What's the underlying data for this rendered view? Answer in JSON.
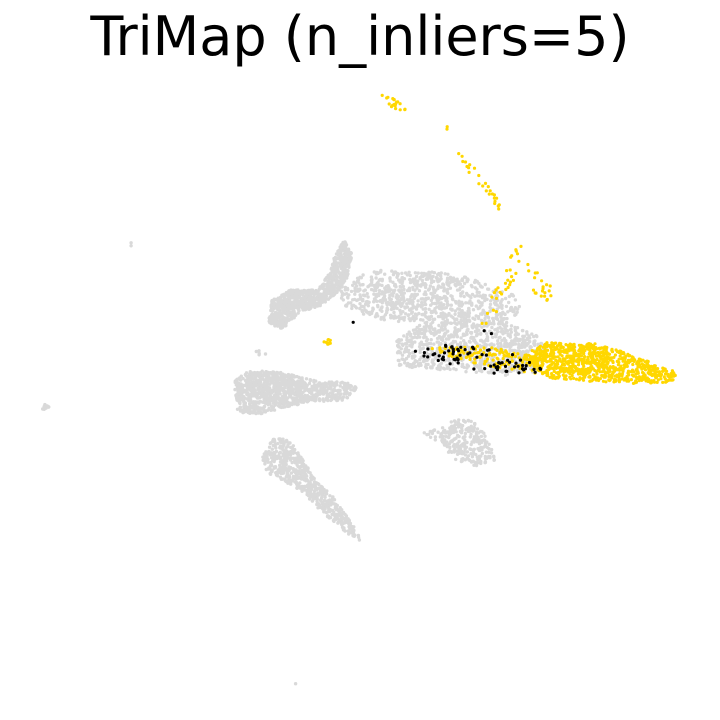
{
  "title": "TriMap (n_inliers=5)",
  "chart_data": {
    "type": "scatter",
    "title": "TriMap (n_inliers=5)",
    "xlabel": "",
    "ylabel": "",
    "axes_visible": false,
    "grid": false,
    "legend": "none",
    "colors": {
      "background_points": "#d9d9d9",
      "highlight_yellow": "#ffd700",
      "highlight_black": "#000000"
    },
    "series": [
      {
        "color_key": "background_points",
        "clusters": [
          {
            "polygon": [
              [
                42,
                406
              ],
              [
                45,
                403
              ],
              [
                49,
                407
              ],
              [
                46,
                411
              ],
              [
                42,
                410
              ]
            ],
            "n": 14
          },
          {
            "polygon": [
              [
                128,
                242
              ],
              [
                136,
                242
              ],
              [
                136,
                248
              ],
              [
                128,
                248
              ]
            ],
            "n": 2
          },
          {
            "polygon": [
              [
                272,
                300
              ],
              [
                290,
                290
              ],
              [
                318,
                290
              ],
              [
                330,
                272
              ],
              [
                334,
                258
              ],
              [
                344,
                240
              ],
              [
                352,
                254
              ],
              [
                348,
                276
              ],
              [
                338,
                292
              ],
              [
                320,
                306
              ],
              [
                300,
                312
              ],
              [
                282,
                330
              ],
              [
                268,
                322
              ]
            ],
            "n": 950
          },
          {
            "polygon": [
              [
                338,
                288
              ],
              [
                356,
                278
              ],
              [
                372,
                270
              ],
              [
                410,
                272
              ],
              [
                440,
                272
              ],
              [
                470,
                278
              ],
              [
                495,
                288
              ],
              [
                518,
                296
              ],
              [
                520,
                312
              ],
              [
                505,
                322
              ],
              [
                470,
                318
              ],
              [
                430,
                320
              ],
              [
                392,
                322
              ],
              [
                362,
                314
              ],
              [
                344,
                306
              ]
            ],
            "n": 800
          },
          {
            "polygon": [
              [
                395,
                340
              ],
              [
                425,
                322
              ],
              [
                465,
                318
              ],
              [
                505,
                322
              ],
              [
                535,
                334
              ],
              [
                548,
                352
              ],
              [
                535,
                372
              ],
              [
                505,
                376
              ],
              [
                465,
                372
              ],
              [
                425,
                369
              ],
              [
                398,
                366
              ]
            ],
            "n": 850
          },
          {
            "polygon": [
              [
                234,
                382
              ],
              [
                246,
                372
              ],
              [
                272,
                370
              ],
              [
                300,
                377
              ],
              [
                320,
                382
              ],
              [
                345,
                382
              ],
              [
                358,
                388
              ],
              [
                345,
                400
              ],
              [
                315,
                402
              ],
              [
                290,
                406
              ],
              [
                262,
                414
              ],
              [
                238,
                414
              ]
            ],
            "n": 1000
          },
          {
            "polygon": [
              [
                262,
                458
              ],
              [
                273,
                438
              ],
              [
                290,
                440
              ],
              [
                303,
                460
              ],
              [
                316,
                480
              ],
              [
                336,
                500
              ],
              [
                356,
                530
              ],
              [
                362,
                542
              ],
              [
                345,
                532
              ],
              [
                320,
                510
              ],
              [
                300,
                490
              ],
              [
                282,
                480
              ],
              [
                266,
                472
              ]
            ],
            "n": 600
          },
          {
            "polygon": [
              [
                420,
                434
              ],
              [
                440,
                428
              ],
              [
                458,
                418
              ],
              [
                475,
                422
              ],
              [
                490,
                440
              ],
              [
                495,
                460
              ],
              [
                475,
                466
              ],
              [
                455,
                460
              ],
              [
                440,
                442
              ]
            ],
            "n": 260
          },
          {
            "polygon": [
              [
                252,
                350
              ],
              [
                268,
                350
              ],
              [
                268,
                356
              ],
              [
                252,
                356
              ]
            ],
            "n": 5
          },
          {
            "polygon": [
              [
                290,
                680
              ],
              [
                298,
                680
              ],
              [
                298,
                684
              ],
              [
                290,
                684
              ]
            ],
            "n": 1
          }
        ]
      },
      {
        "color_key": "highlight_yellow",
        "clusters": [
          {
            "polygon": [
              [
                380,
                93
              ],
              [
                398,
                100
              ],
              [
                408,
                112
              ],
              [
                390,
                110
              ]
            ],
            "n": 20
          },
          {
            "polygon": [
              [
                444,
                126
              ],
              [
                448,
                126
              ],
              [
                448,
                130
              ],
              [
                444,
                130
              ]
            ],
            "n": 2
          },
          {
            "polygon": [
              [
                456,
                152
              ],
              [
                470,
                160
              ],
              [
                488,
                182
              ],
              [
                503,
                208
              ],
              [
                498,
                210
              ],
              [
                482,
                188
              ],
              [
                465,
                168
              ]
            ],
            "n": 26
          },
          {
            "polygon": [
              [
                502,
                276
              ],
              [
                518,
                240
              ],
              [
                524,
                248
              ],
              [
                512,
                288
              ],
              [
                492,
                320
              ],
              [
                482,
                330
              ],
              [
                480,
                322
              ]
            ],
            "n": 30
          },
          {
            "polygon": [
              [
                525,
                262
              ],
              [
                540,
                272
              ],
              [
                556,
                292
              ],
              [
                546,
                304
              ],
              [
                532,
                290
              ]
            ],
            "n": 22
          },
          {
            "polygon": [
              [
                324,
                339
              ],
              [
                331,
                339
              ],
              [
                331,
                345
              ],
              [
                324,
                345
              ]
            ],
            "n": 10
          },
          {
            "polygon": [
              [
                520,
                356
              ],
              [
                548,
                342
              ],
              [
                600,
                344
              ],
              [
                640,
                358
              ],
              [
                677,
                372
              ],
              [
                672,
                382
              ],
              [
                630,
                384
              ],
              [
                585,
                381
              ],
              [
                548,
                378
              ]
            ],
            "n": 900
          },
          {
            "polygon": [
              [
                428,
                348
              ],
              [
                480,
                346
              ],
              [
                520,
                352
              ],
              [
                545,
                360
              ],
              [
                538,
                374
              ],
              [
                500,
                368
              ],
              [
                460,
                360
              ]
            ],
            "n": 130
          }
        ]
      },
      {
        "color_key": "highlight_black",
        "clusters": [
          {
            "polygon": [
              [
                412,
                352
              ],
              [
                440,
                344
              ],
              [
                490,
                348
              ],
              [
                520,
                356
              ],
              [
                542,
                368
              ],
              [
                540,
                378
              ],
              [
                510,
                378
              ],
              [
                470,
                368
              ],
              [
                430,
                362
              ]
            ],
            "n": 75
          },
          {
            "polygon": [
              [
                350,
                320
              ],
              [
                356,
                320
              ],
              [
                356,
                324
              ],
              [
                350,
                324
              ]
            ],
            "n": 1
          },
          {
            "polygon": [
              [
                484,
                330
              ],
              [
                492,
                330
              ],
              [
                492,
                336
              ],
              [
                484,
                336
              ]
            ],
            "n": 2
          }
        ]
      }
    ]
  }
}
